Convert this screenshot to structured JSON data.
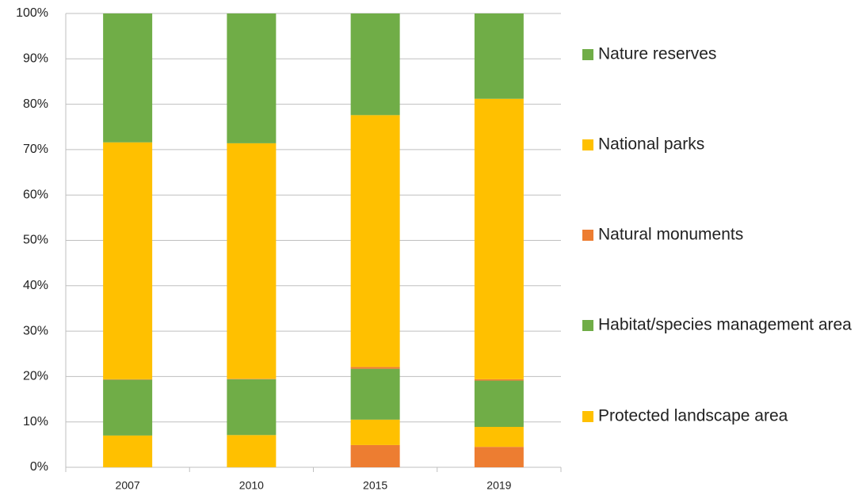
{
  "chart_data": {
    "type": "bar",
    "stacked": true,
    "categories": [
      "2007",
      "2010",
      "2015",
      "2019"
    ],
    "series": [
      {
        "color": "#ed7d31",
        "values": [
          0,
          0,
          4.9,
          4.5
        ]
      },
      {
        "name": "Protected landscape area",
        "color": "#ffc000",
        "values": [
          7,
          7.1,
          5.6,
          4.4
        ]
      },
      {
        "name": "Habitat/species management area",
        "color": "#70ad47",
        "values": [
          12.3,
          12.3,
          11.2,
          10.2
        ]
      },
      {
        "name": "Natural monuments",
        "color": "#ed7d31",
        "values": [
          0.1,
          0.1,
          0.4,
          0.3
        ]
      },
      {
        "name": "National parks",
        "color": "#ffc000",
        "values": [
          52.2,
          51.9,
          55.5,
          61.8
        ]
      },
      {
        "name": "Nature reserves",
        "color": "#70ad47",
        "values": [
          28.4,
          28.6,
          22.4,
          18.8
        ]
      }
    ],
    "ylim": [
      0,
      100
    ],
    "yticks": [
      {
        "value": 0,
        "label": "0%"
      },
      {
        "value": 10,
        "label": "10%"
      },
      {
        "value": 20,
        "label": "20%"
      },
      {
        "value": 30,
        "label": "30%"
      },
      {
        "value": 40,
        "label": "40%"
      },
      {
        "value": 50,
        "label": "50%"
      },
      {
        "value": 60,
        "label": "60%"
      },
      {
        "value": 70,
        "label": "70%"
      },
      {
        "value": 80,
        "label": "80%"
      },
      {
        "value": 90,
        "label": "90%"
      },
      {
        "value": 100,
        "label": "100%"
      }
    ],
    "grid": true,
    "legend": "right"
  }
}
